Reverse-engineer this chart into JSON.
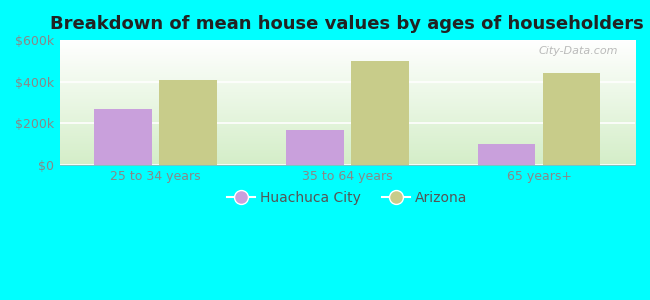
{
  "title": "Breakdown of mean house values by ages of householders",
  "categories": [
    "25 to 34 years",
    "35 to 64 years",
    "65 years+"
  ],
  "huachuca_values": [
    270000,
    170000,
    100000
  ],
  "arizona_values": [
    410000,
    500000,
    440000
  ],
  "huachuca_color": "#c9a0dc",
  "arizona_color": "#c8cc8a",
  "ylim": [
    0,
    600000
  ],
  "yticks": [
    0,
    200000,
    400000,
    600000
  ],
  "ytick_labels": [
    "$0",
    "$200k",
    "$400k",
    "$600k"
  ],
  "background_color": "#00ffff",
  "bar_width": 0.3,
  "legend_huachuca": "Huachuca City",
  "legend_arizona": "Arizona",
  "title_fontsize": 13,
  "tick_fontsize": 9,
  "legend_fontsize": 10,
  "gradient_top": "#f0faf0",
  "gradient_bottom": "#ffffff"
}
